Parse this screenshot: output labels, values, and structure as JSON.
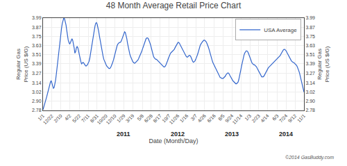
{
  "chart_data": {
    "type": "line",
    "title": "48 Month Average Retail Price Chart",
    "xlabel": "Date (Month/Day)",
    "ylabel": "Regular Gas\nPrice (US $/G)",
    "y2label": "Regular Gas\nPrice (US $/G)",
    "categories": [
      "1/1",
      null,
      null,
      null,
      null,
      null,
      null,
      null,
      null,
      null,
      null,
      null,
      "12/22",
      null,
      null,
      null,
      null,
      null,
      null,
      null,
      null,
      null,
      null,
      null,
      "2/10",
      null,
      null,
      null,
      null,
      null,
      null,
      null,
      null,
      null,
      null,
      null,
      "4/2",
      null,
      null,
      null,
      null,
      null,
      null,
      null,
      null,
      null,
      null,
      null,
      null,
      "5/22",
      null,
      null,
      null,
      null,
      null,
      null,
      null,
      null,
      null,
      null,
      null,
      "7/11",
      null,
      null,
      null,
      null,
      null,
      null,
      null,
      null,
      null,
      null,
      null,
      "8/31",
      null,
      null,
      null,
      null,
      null,
      null,
      null,
      null,
      null,
      null,
      null,
      "10/20",
      null,
      null,
      null,
      null,
      null,
      null,
      null,
      null,
      null,
      null,
      null,
      "12/10",
      null,
      null,
      null,
      null,
      null,
      null,
      null,
      null,
      null,
      null,
      null,
      "1/29",
      null,
      null,
      null,
      null,
      null,
      null,
      null,
      null,
      null,
      null,
      null,
      "3/19",
      null,
      null,
      null,
      null,
      null,
      null,
      null,
      null,
      null,
      null,
      null,
      null,
      "5/8",
      null,
      null,
      null,
      null,
      null,
      null,
      null,
      null,
      null,
      null,
      null,
      "6/28",
      null,
      null,
      null,
      null,
      null,
      null,
      null,
      null,
      null,
      null,
      null,
      "8/17",
      null,
      null,
      null,
      null,
      null,
      null,
      null,
      null,
      null,
      null,
      null,
      "10/7",
      null,
      null,
      null,
      null,
      null,
      null,
      null,
      null,
      null,
      null,
      null,
      "11/26",
      null,
      null,
      null,
      null,
      null,
      null,
      null,
      null,
      null,
      null,
      null,
      "1/16",
      null,
      null,
      null,
      null,
      null,
      null,
      null,
      null,
      null,
      null,
      null,
      "3/7",
      null,
      null,
      null,
      null,
      null,
      null,
      null,
      null,
      null,
      null,
      null,
      "4/26",
      null,
      null,
      null,
      null,
      null,
      null,
      null,
      null,
      null,
      null,
      null,
      null,
      "6/16",
      null,
      null,
      null,
      null,
      null,
      null,
      null,
      null,
      null,
      null,
      null,
      "8/5",
      null,
      null,
      null,
      null,
      null,
      null,
      null,
      null,
      null,
      null,
      null,
      "9/24",
      null,
      null,
      null,
      null,
      null,
      null,
      null,
      null,
      null,
      null,
      null,
      "11/14",
      null,
      null,
      null,
      null,
      null,
      null,
      null,
      null,
      null,
      null,
      null,
      "1/3",
      null,
      null,
      null,
      null,
      null,
      null,
      null,
      null,
      null,
      null,
      null,
      "2/23",
      null,
      null,
      null,
      null,
      null,
      null,
      null,
      null,
      null,
      null,
      null,
      "4/14",
      null,
      null,
      null,
      null,
      null,
      null,
      null,
      null,
      null,
      null,
      null,
      null,
      "6/3",
      null,
      null,
      null,
      null,
      null,
      null,
      null,
      null,
      null,
      null,
      null,
      "7/24",
      null,
      null,
      null,
      null,
      null,
      null,
      null,
      null,
      null,
      null,
      null,
      "9/12",
      null,
      null,
      null,
      null,
      null,
      null,
      null,
      null,
      null,
      null,
      null,
      "11/1"
    ],
    "series": [
      {
        "name": "USA Average",
        "color": "#3366cc",
        "values": [
          2.79,
          2.82,
          2.85,
          2.88,
          2.92,
          2.96,
          3.0,
          3.04,
          3.08,
          3.12,
          3.15,
          3.17,
          3.14,
          3.1,
          3.07,
          3.08,
          3.12,
          3.18,
          3.26,
          3.35,
          3.45,
          3.55,
          3.65,
          3.72,
          3.8,
          3.86,
          3.92,
          3.96,
          3.99,
          3.98,
          3.95,
          3.9,
          3.83,
          3.75,
          3.7,
          3.67,
          3.65,
          3.67,
          3.7,
          3.72,
          3.7,
          3.66,
          3.6,
          3.53,
          3.55,
          3.6,
          3.62,
          3.6,
          3.55,
          3.5,
          3.46,
          3.42,
          3.39,
          3.4,
          3.41,
          3.4,
          3.38,
          3.37,
          3.36,
          3.37,
          3.38,
          3.4,
          3.42,
          3.46,
          3.52,
          3.58,
          3.65,
          3.72,
          3.79,
          3.84,
          3.88,
          3.92,
          3.93,
          3.91,
          3.87,
          3.82,
          3.76,
          3.7,
          3.64,
          3.58,
          3.53,
          3.49,
          3.45,
          3.42,
          3.4,
          3.38,
          3.36,
          3.35,
          3.34,
          3.33,
          3.33,
          3.34,
          3.36,
          3.38,
          3.41,
          3.44,
          3.48,
          3.52,
          3.56,
          3.6,
          3.63,
          3.65,
          3.66,
          3.67,
          3.67,
          3.68,
          3.7,
          3.73,
          3.76,
          3.79,
          3.81,
          3.8,
          3.77,
          3.72,
          3.66,
          3.6,
          3.55,
          3.52,
          3.49,
          3.46,
          3.44,
          3.42,
          3.41,
          3.4,
          3.4,
          3.41,
          3.42,
          3.43,
          3.44,
          3.46,
          3.48,
          3.5,
          3.52,
          3.55,
          3.58,
          3.61,
          3.64,
          3.67,
          3.7,
          3.72,
          3.73,
          3.73,
          3.72,
          3.7,
          3.67,
          3.64,
          3.6,
          3.56,
          3.52,
          3.49,
          3.47,
          3.46,
          3.45,
          3.45,
          3.44,
          3.43,
          3.42,
          3.41,
          3.4,
          3.39,
          3.38,
          3.37,
          3.36,
          3.35,
          3.35,
          3.36,
          3.38,
          3.4,
          3.43,
          3.46,
          3.49,
          3.51,
          3.53,
          3.54,
          3.55,
          3.56,
          3.57,
          3.58,
          3.6,
          3.62,
          3.64,
          3.66,
          3.67,
          3.67,
          3.66,
          3.64,
          3.62,
          3.6,
          3.58,
          3.56,
          3.54,
          3.52,
          3.5,
          3.49,
          3.48,
          3.48,
          3.49,
          3.5,
          3.5,
          3.49,
          3.47,
          3.44,
          3.42,
          3.41,
          3.42,
          3.43,
          3.45,
          3.47,
          3.5,
          3.53,
          3.57,
          3.6,
          3.63,
          3.65,
          3.67,
          3.68,
          3.69,
          3.7,
          3.7,
          3.69,
          3.68,
          3.66,
          3.64,
          3.61,
          3.58,
          3.54,
          3.5,
          3.47,
          3.44,
          3.41,
          3.39,
          3.37,
          3.35,
          3.33,
          3.31,
          3.29,
          3.27,
          3.25,
          3.23,
          3.21,
          3.21,
          3.2,
          3.2,
          3.2,
          3.21,
          3.22,
          3.23,
          3.25,
          3.26,
          3.27,
          3.27,
          3.26,
          3.24,
          3.22,
          3.2,
          3.18,
          3.17,
          3.16,
          3.15,
          3.14,
          3.13,
          3.13,
          3.14,
          3.15,
          3.18,
          3.22,
          3.27,
          3.32,
          3.37,
          3.42,
          3.46,
          3.5,
          3.53,
          3.55,
          3.56,
          3.56,
          3.55,
          3.53,
          3.5,
          3.47,
          3.44,
          3.42,
          3.4,
          3.39,
          3.38,
          3.38,
          3.37,
          3.36,
          3.35,
          3.33,
          3.31,
          3.29,
          3.27,
          3.25,
          3.23,
          3.22,
          3.22,
          3.22,
          3.23,
          3.25,
          3.27,
          3.29,
          3.31,
          3.33,
          3.34,
          3.35,
          3.36,
          3.37,
          3.38,
          3.39,
          3.4,
          3.41,
          3.42,
          3.43,
          3.44,
          3.45,
          3.46,
          3.47,
          3.48,
          3.49,
          3.5,
          3.52,
          3.54,
          3.56,
          3.57,
          3.58,
          3.58,
          3.57,
          3.56,
          3.54,
          3.52,
          3.5,
          3.48,
          3.46,
          3.44,
          3.43,
          3.42,
          3.41,
          3.41,
          3.4,
          3.39,
          3.38,
          3.37,
          3.35,
          3.33,
          3.3,
          3.27,
          3.23,
          3.18,
          3.14,
          3.09,
          3.05,
          3.02
        ]
      }
    ],
    "ylim": [
      2.78,
      3.99
    ],
    "yticks": [
      2.78,
      {
        "value": 2.9,
        "label": "2.90"
      },
      3.02,
      3.14,
      3.27,
      3.39,
      3.51,
      3.63,
      3.75,
      3.87,
      3.99
    ],
    "y2lim": [
      2.78,
      3.99
    ],
    "y2ticks": [
      2.78,
      {
        "value": 2.9,
        "label": "2.90"
      },
      3.02,
      3.14,
      3.27,
      3.39,
      3.51,
      3.63,
      3.75,
      3.87,
      3.99
    ],
    "grid": true,
    "legend": "upper right",
    "annotations": [
      {
        "text": "2011",
        "x": "1/29"
      },
      {
        "text": "2012",
        "x": "11/26"
      },
      {
        "text": "2013",
        "x": "9/24"
      },
      {
        "text": "2014",
        "x": "7/24"
      },
      {
        "text": "©2014 GasBuddy.com"
      }
    ]
  }
}
